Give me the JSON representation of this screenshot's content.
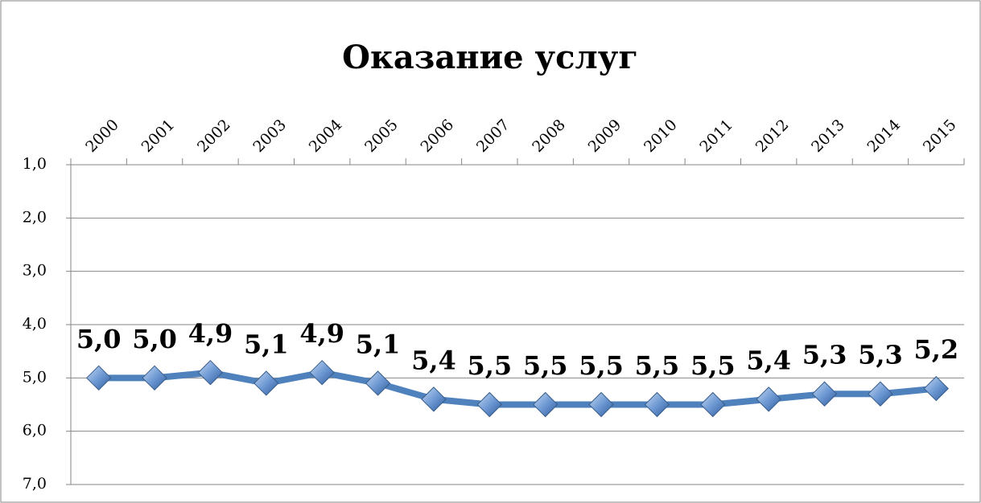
{
  "chart_data": {
    "type": "line",
    "title": "Оказание услуг",
    "categories": [
      "2000",
      "2001",
      "2002",
      "2003",
      "2004",
      "2005",
      "2006",
      "2007",
      "2008",
      "2009",
      "2010",
      "2011",
      "2012",
      "2013",
      "2014",
      "2015"
    ],
    "series": [
      {
        "name": "Оказание услуг",
        "color": "#4f81bd",
        "values": [
          5.0,
          5.0,
          4.9,
          5.1,
          4.9,
          5.1,
          5.4,
          5.5,
          5.5,
          5.5,
          5.5,
          5.5,
          5.4,
          5.3,
          5.3,
          5.2
        ],
        "value_labels": [
          "5,0",
          "5,0",
          "4,9",
          "5,1",
          "4,9",
          "5,1",
          "5,4",
          "5,5",
          "5,5",
          "5,5",
          "5,5",
          "5,5",
          "5,4",
          "5,3",
          "5,3",
          "5,2"
        ]
      }
    ],
    "ylim": [
      1,
      7
    ],
    "y_inverted": true,
    "yticks": [
      {
        "value": 1,
        "label": "1,0"
      },
      {
        "value": 2,
        "label": "2,0"
      },
      {
        "value": 3,
        "label": "3,0"
      },
      {
        "value": 4,
        "label": "4,0"
      },
      {
        "value": 5,
        "label": "5,0"
      },
      {
        "value": 6,
        "label": "6,0"
      },
      {
        "value": 7,
        "label": "7,0"
      }
    ],
    "grid": true,
    "x_axis_position": "top"
  }
}
